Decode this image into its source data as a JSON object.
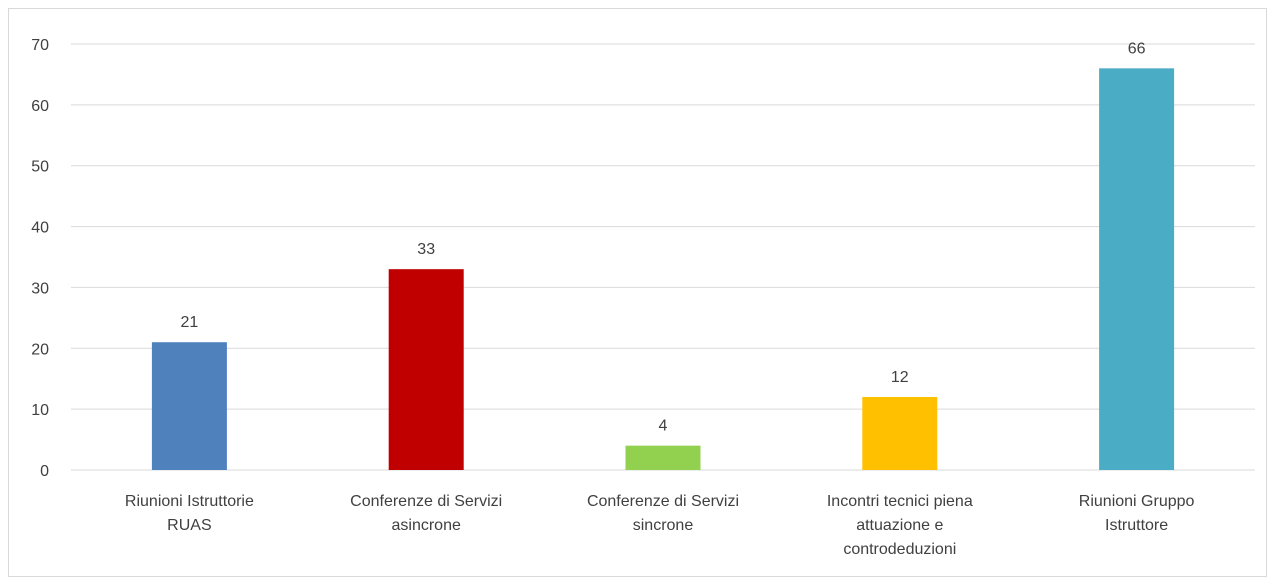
{
  "chart_data": {
    "type": "bar",
    "categories": [
      [
        "Riunioni Istruttorie",
        "RUAS"
      ],
      [
        "Conferenze di Servizi",
        "asincrone"
      ],
      [
        "Conferenze di Servizi",
        "sincrone"
      ],
      [
        "Incontri tecnici piena",
        "attuazione e",
        "controdeduzioni"
      ],
      [
        "Riunioni Gruppo",
        "Istruttore"
      ]
    ],
    "values": [
      21,
      33,
      4,
      12,
      66
    ],
    "data_labels": [
      "21",
      "33",
      "4",
      "12",
      "66"
    ],
    "colors": [
      "#4f81bd",
      "#c00000",
      "#92d050",
      "#ffc000",
      "#4bacc6"
    ],
    "ylim": [
      0,
      70
    ],
    "yticks": [
      0,
      10,
      20,
      30,
      40,
      50,
      60,
      70
    ],
    "title": "",
    "xlabel": "",
    "ylabel": "",
    "grid": true,
    "legend": "none"
  }
}
